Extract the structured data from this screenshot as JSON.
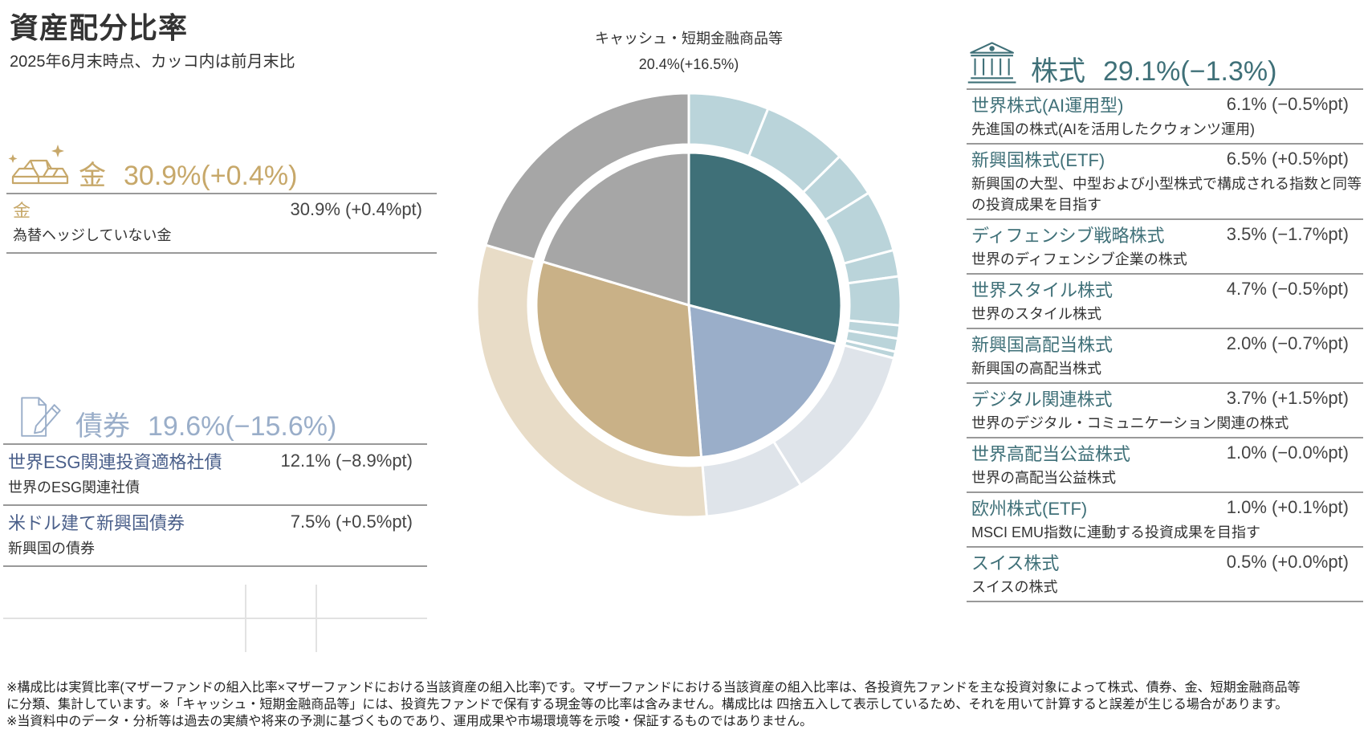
{
  "page": {
    "title": "資産配分比率",
    "subtitle": "2025年6月末時点、カッコ内は前月末比"
  },
  "gold": {
    "title": "金",
    "pct": "30.9%(+0.4%)",
    "color": "#c7a86a",
    "icon": "gold-bars-icon",
    "items": [
      {
        "name": "金",
        "value": "30.9% (+0.4%pt)",
        "desc": "為替ヘッジしていない金"
      }
    ]
  },
  "bond": {
    "title": "債券",
    "pct": "19.6%(−15.6%)",
    "color": "#9aaec9",
    "icon": "document-pen-icon",
    "items": [
      {
        "name": "世界ESG関連投資適格社債",
        "value": "12.1% (−8.9%pt)",
        "desc": "世界のESG関連社債"
      },
      {
        "name": "米ドル建て新興国債券",
        "value": "7.5% (+0.5%pt)",
        "desc": "新興国の債券"
      }
    ]
  },
  "stock": {
    "title": "株式",
    "pct": "29.1%(−1.3%)",
    "color": "#3f7078",
    "icon": "bank-building-icon",
    "items": [
      {
        "name": "世界株式(AI運用型)",
        "value": "6.1% (−0.5%pt)",
        "desc": "先進国の株式(AIを活用したクウォンツ運用)"
      },
      {
        "name": "新興国株式(ETF)",
        "value": "6.5% (+0.5%pt)",
        "desc": "新興国の大型、中型および小型株式で構成される指数と同等の投資成果を目指す"
      },
      {
        "name": "ディフェンシブ戦略株式",
        "value": "3.5% (−1.7%pt)",
        "desc": "世界のディフェンシブ企業の株式"
      },
      {
        "name": "世界スタイル株式",
        "value": "4.7% (−0.5%pt)",
        "desc": "世界のスタイル株式"
      },
      {
        "name": "新興国高配当株式",
        "value": "2.0% (−0.7%pt)",
        "desc": "新興国の高配当株式"
      },
      {
        "name": "デジタル関連株式",
        "value": "3.7% (+1.5%pt)",
        "desc": "世界のデジタル・コミュニケーション関連の株式"
      },
      {
        "name": "世界高配当公益株式",
        "value": "1.0% (−0.0%pt)",
        "desc": "世界の高配当公益株式"
      },
      {
        "name": "欧州株式(ETF)",
        "value": "1.0% (+0.1%pt)",
        "desc": "MSCI EMU指数に連動する投資成果を目指す"
      },
      {
        "name": "スイス株式",
        "value": "0.5% (+0.0%pt)",
        "desc": "スイスの株式"
      }
    ]
  },
  "chart_data": {
    "type": "pie",
    "annotation_label": "キャッシュ・短期金融商品等",
    "annotation_value": "20.4%(+16.5%)",
    "inner": [
      {
        "category": "株式",
        "value": 29.1,
        "color": "#3f7078"
      },
      {
        "category": "債券",
        "value": 19.6,
        "color": "#9aaec9"
      },
      {
        "category": "金",
        "value": 30.9,
        "color": "#c9b187"
      },
      {
        "category": "キャッシュ・短期金融商品等",
        "value": 20.4,
        "color": "#a6a6a6"
      }
    ],
    "outer": [
      {
        "category": "世界株式(AI運用型)",
        "value": 6.1,
        "color": "#bad4da"
      },
      {
        "category": "新興国株式(ETF)",
        "value": 6.5,
        "color": "#bad4da"
      },
      {
        "category": "ディフェンシブ戦略株式",
        "value": 3.5,
        "color": "#bad4da"
      },
      {
        "category": "世界スタイル株式",
        "value": 4.7,
        "color": "#bad4da"
      },
      {
        "category": "新興国高配当株式",
        "value": 2.0,
        "color": "#bad4da"
      },
      {
        "category": "デジタル関連株式",
        "value": 3.7,
        "color": "#bad4da"
      },
      {
        "category": "世界高配当公益株式",
        "value": 1.0,
        "color": "#bad4da"
      },
      {
        "category": "欧州株式(ETF)",
        "value": 1.0,
        "color": "#bad4da"
      },
      {
        "category": "スイス株式",
        "value": 0.5,
        "color": "#bad4da"
      },
      {
        "category": "世界ESG関連投資適格社債",
        "value": 12.1,
        "color": "#dfe4ea"
      },
      {
        "category": "米ドル建て新興国債券",
        "value": 7.5,
        "color": "#dfe4ea"
      },
      {
        "category": "金",
        "value": 30.9,
        "color": "#e8dcc7"
      },
      {
        "category": "キャッシュ・短期金融商品等",
        "value": 20.4,
        "color": "#a6a6a6"
      }
    ]
  },
  "footnotes": [
    "※構成比は実質比率(マザーファンドの組入比率×マザーファンドにおける当該資産の組入比率)です。マザーファンドにおける当該資産の組入比率は、各投資先ファンドを主な投資対象によって株式、債券、金、短期金融商品等",
    "に分類、集計しています。※「キャッシュ・短期金融商品等」には、投資先ファンドで保有する現金等の比率は含みません。構成比は 四捨五入して表示しているため、それを用いて計算すると誤差が生じる場合があります。",
    "※当資料中のデータ・分析等は過去の実績や将来の予測に基づくものであり、運用成果や市場環境等を示唆・保証するものではありません。"
  ]
}
